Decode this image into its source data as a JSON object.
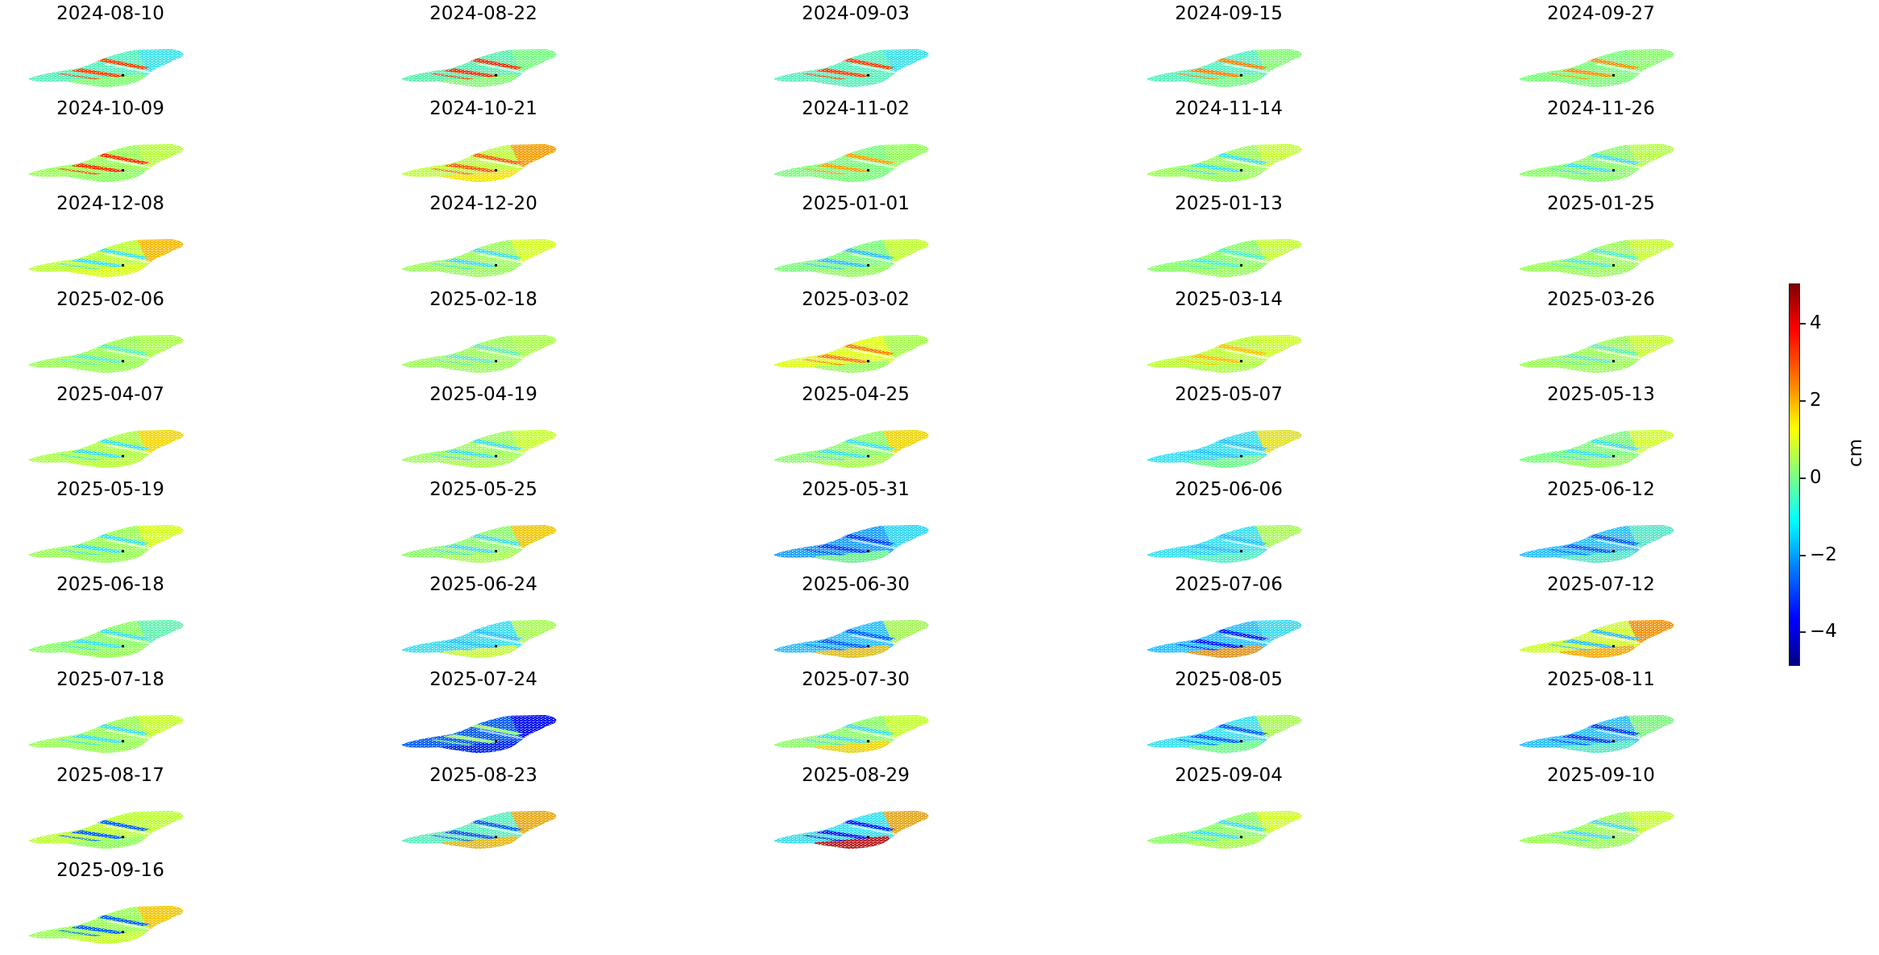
{
  "chart_data": {
    "type": "heatmap",
    "title": "",
    "description": "Small-multiple grid of displacement maps (InSAR-style), one per acquisition date, sharing a jet colorbar",
    "layout": {
      "columns": 5,
      "rows": 10,
      "panel_count": 46
    },
    "colorbar": {
      "label": "cm",
      "vmin": -5,
      "vmax": 5,
      "colormap": "jet",
      "ticks": [
        4,
        2,
        0,
        -2,
        -4
      ],
      "tick_labels": [
        "4",
        "2",
        "0",
        "−2",
        "−4"
      ]
    },
    "panels": [
      {
        "date": "2024-08-10",
        "base": "#60f0c0",
        "stripes": "#ff4000",
        "east": "#40e0f0",
        "south": "#90ff70"
      },
      {
        "date": "2024-08-22",
        "base": "#60f0b0",
        "stripes": "#ff3000",
        "east": "#80ff80",
        "south": "#90ff70"
      },
      {
        "date": "2024-09-03",
        "base": "#60f0c0",
        "stripes": "#ff4000",
        "east": "#40e0f0",
        "south": "#60f0c0"
      },
      {
        "date": "2024-09-15",
        "base": "#60f0c0",
        "stripes": "#ff8000",
        "east": "#90ff70",
        "south": "#80ff80"
      },
      {
        "date": "2024-09-27",
        "base": "#80ff80",
        "stripes": "#ff9000",
        "east": "#90ff70",
        "south": "#80ff80"
      },
      {
        "date": "2024-10-09",
        "base": "#a0ff60",
        "stripes": "#ff3000",
        "east": "#c0ff40",
        "south": "#90ff70"
      },
      {
        "date": "2024-10-21",
        "base": "#c0ff40",
        "stripes": "#ff6000",
        "east": "#ff9000",
        "south": "#ffe000"
      },
      {
        "date": "2024-11-02",
        "base": "#80ff80",
        "stripes": "#ffa000",
        "east": "#a0ff60",
        "south": "#80ff80"
      },
      {
        "date": "2024-11-14",
        "base": "#a0ff60",
        "stripes": "#40e0f0",
        "east": "#d0ff30",
        "south": "#a0ff60"
      },
      {
        "date": "2024-11-26",
        "base": "#90ff70",
        "stripes": "#40e0f0",
        "east": "#c0ff40",
        "south": "#90ff70"
      },
      {
        "date": "2024-12-08",
        "base": "#c0ff40",
        "stripes": "#40e0f0",
        "east": "#ffb000",
        "south": "#e0ff20"
      },
      {
        "date": "2024-12-20",
        "base": "#a0ff60",
        "stripes": "#40e0f0",
        "east": "#e0ff20",
        "south": "#a0ff60"
      },
      {
        "date": "2025-01-01",
        "base": "#80ff80",
        "stripes": "#30c0ff",
        "east": "#d0ff30",
        "south": "#a0ff60"
      },
      {
        "date": "2025-01-13",
        "base": "#90ff70",
        "stripes": "#50f0d0",
        "east": "#d0ff30",
        "south": "#a0ff60"
      },
      {
        "date": "2025-01-25",
        "base": "#a0ff60",
        "stripes": "#50f0d0",
        "east": "#d0ff30",
        "south": "#a0ff60"
      },
      {
        "date": "2025-02-06",
        "base": "#a0ff60",
        "stripes": "#60f0c0",
        "east": "#b0ff50",
        "south": "#a0ff60"
      },
      {
        "date": "2025-02-18",
        "base": "#a0ff60",
        "stripes": "#60f0c0",
        "east": "#b0ff50",
        "south": "#a0ff60"
      },
      {
        "date": "2025-03-02",
        "base": "#e0ff20",
        "stripes": "#ff8000",
        "east": "#a0ff60",
        "south": "#90ff70"
      },
      {
        "date": "2025-03-14",
        "base": "#c0ff40",
        "stripes": "#ffc000",
        "east": "#d0ff30",
        "south": "#b0ff50"
      },
      {
        "date": "2025-03-26",
        "base": "#a0ff60",
        "stripes": "#60f0c0",
        "east": "#d0ff30",
        "south": "#a0ff60"
      },
      {
        "date": "2025-04-07",
        "base": "#b0ff50",
        "stripes": "#40e0f0",
        "east": "#ffd000",
        "south": "#c0ff40"
      },
      {
        "date": "2025-04-19",
        "base": "#a0ff60",
        "stripes": "#40e0f0",
        "east": "#d0ff30",
        "south": "#b0ff50"
      },
      {
        "date": "2025-04-25",
        "base": "#90ff70",
        "stripes": "#40e0f0",
        "east": "#ffd000",
        "south": "#b0ff50"
      },
      {
        "date": "2025-05-07",
        "base": "#40e0f0",
        "stripes": "#30c0ff",
        "east": "#ffe000",
        "south": "#80ff80"
      },
      {
        "date": "2025-05-13",
        "base": "#80ff80",
        "stripes": "#40e0f0",
        "east": "#e0ff20",
        "south": "#a0ff60"
      },
      {
        "date": "2025-05-19",
        "base": "#a0ff60",
        "stripes": "#40e0f0",
        "east": "#e0ff20",
        "south": "#a0ff60"
      },
      {
        "date": "2025-05-25",
        "base": "#90ff70",
        "stripes": "#40e0f0",
        "east": "#ffc000",
        "south": "#b0ff50"
      },
      {
        "date": "2025-05-31",
        "base": "#20a0ff",
        "stripes": "#0040ff",
        "east": "#40e0f0",
        "south": "#80ff80"
      },
      {
        "date": "2025-06-06",
        "base": "#40e0f0",
        "stripes": "#30c0ff",
        "east": "#c0ff40",
        "south": "#60f0c0"
      },
      {
        "date": "2025-06-12",
        "base": "#30c0ff",
        "stripes": "#0060ff",
        "east": "#60f0c0",
        "south": "#60f0c0"
      },
      {
        "date": "2025-06-18",
        "base": "#90ff70",
        "stripes": "#40e0f0",
        "east": "#60f0c0",
        "south": "#a0ff60"
      },
      {
        "date": "2025-06-24",
        "base": "#40e0f0",
        "stripes": "#30c0ff",
        "east": "#c0ff40",
        "south": "#e0ff20"
      },
      {
        "date": "2025-06-30",
        "base": "#30c0ff",
        "stripes": "#0060ff",
        "east": "#c0ff40",
        "south": "#ffc000"
      },
      {
        "date": "2025-07-06",
        "base": "#30c0ff",
        "stripes": "#0020ff",
        "east": "#40e0f0",
        "south": "#ff9000"
      },
      {
        "date": "2025-07-12",
        "base": "#d0ff30",
        "stripes": "#30c0ff",
        "east": "#ff8000",
        "south": "#ffa000"
      },
      {
        "date": "2025-07-18",
        "base": "#a0ff60",
        "stripes": "#40e0f0",
        "east": "#d0ff30",
        "south": "#a0ff60"
      },
      {
        "date": "2025-07-24",
        "base": "#0060ff",
        "stripes": "#90ff70",
        "east": "#0000ff",
        "south": "#0020ff"
      },
      {
        "date": "2025-07-30",
        "base": "#90ff70",
        "stripes": "#40e0f0",
        "east": "#d0ff30",
        "south": "#ffd000"
      },
      {
        "date": "2025-08-05",
        "base": "#40e0f0",
        "stripes": "#0060ff",
        "east": "#c0ff40",
        "south": "#80ff80"
      },
      {
        "date": "2025-08-11",
        "base": "#30c0ff",
        "stripes": "#0040ff",
        "east": "#90ff70",
        "south": "#60f0c0"
      },
      {
        "date": "2025-08-17",
        "base": "#c0ff40",
        "stripes": "#0060ff",
        "east": "#c0ff40",
        "south": "#90ff70"
      },
      {
        "date": "2025-08-23",
        "base": "#60f0c0",
        "stripes": "#0060ff",
        "east": "#ffa000",
        "south": "#ffb000"
      },
      {
        "date": "2025-08-29",
        "base": "#40e0f0",
        "stripes": "#0020ff",
        "east": "#ffa000",
        "south": "#d00000"
      },
      {
        "date": "2025-09-04",
        "base": "#90ff70",
        "stripes": "#40e0f0",
        "east": "#e0ff20",
        "south": "#b0ff50"
      },
      {
        "date": "2025-09-10",
        "base": "#a0ff60",
        "stripes": "#40e0f0",
        "east": "#d0ff30",
        "south": "#a0ff60"
      },
      {
        "date": "2025-09-16",
        "base": "#a0ff60",
        "stripes": "#0060ff",
        "east": "#ffc000",
        "south": "#d0ff30"
      }
    ]
  }
}
